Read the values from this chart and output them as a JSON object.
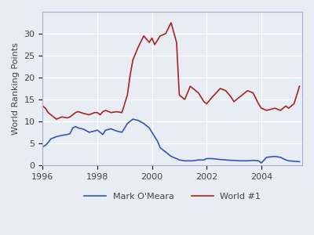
{
  "title": "",
  "ylabel": "World Ranking Points",
  "xlabel": "",
  "background_color": "#e8edf4",
  "grid_color": "#ffffff",
  "ylim": [
    0,
    35
  ],
  "xlim": [
    1996.0,
    2005.5
  ],
  "xticks": [
    1996,
    1998,
    2000,
    2002,
    2004
  ],
  "yticks": [
    0,
    5,
    10,
    15,
    20,
    25,
    30
  ],
  "line_omeara_color": "#3355bb",
  "line_world1_color": "#aa2222",
  "legend_labels": [
    "Mark O'Meara",
    "World #1"
  ],
  "omeara_x": [
    1996.0,
    1996.1,
    1996.2,
    1996.3,
    1996.5,
    1996.7,
    1996.9,
    1997.0,
    1997.1,
    1997.2,
    1997.3,
    1997.5,
    1997.7,
    1997.9,
    1998.0,
    1998.1,
    1998.2,
    1998.3,
    1998.5,
    1998.7,
    1998.9,
    1999.0,
    1999.1,
    1999.2,
    1999.3,
    1999.5,
    1999.7,
    1999.9,
    2000.0,
    2000.1,
    2000.2,
    2000.3,
    2000.5,
    2000.7,
    2000.9,
    2001.0,
    2001.2,
    2001.5,
    2001.7,
    2001.9,
    2002.0,
    2002.2,
    2002.5,
    2002.7,
    2002.9,
    2003.0,
    2003.2,
    2003.5,
    2003.7,
    2003.9,
    2004.0,
    2004.2,
    2004.5,
    2004.7,
    2004.9,
    2005.0,
    2005.2,
    2005.4
  ],
  "omeara_y": [
    4.2,
    4.5,
    5.2,
    6.0,
    6.5,
    6.8,
    7.0,
    7.2,
    8.5,
    8.8,
    8.5,
    8.2,
    7.5,
    7.8,
    8.0,
    7.5,
    7.0,
    8.0,
    8.3,
    7.8,
    7.5,
    8.5,
    9.5,
    10.0,
    10.5,
    10.2,
    9.5,
    8.5,
    7.5,
    6.5,
    5.5,
    4.0,
    3.0,
    2.0,
    1.5,
    1.2,
    1.0,
    1.0,
    1.2,
    1.2,
    1.5,
    1.5,
    1.3,
    1.2,
    1.1,
    1.1,
    1.0,
    1.0,
    1.1,
    1.0,
    0.5,
    1.8,
    2.0,
    1.8,
    1.2,
    1.0,
    0.9,
    0.8
  ],
  "world1_x": [
    1996.0,
    1996.1,
    1996.2,
    1996.3,
    1996.5,
    1996.7,
    1996.9,
    1997.0,
    1997.1,
    1997.2,
    1997.3,
    1997.5,
    1997.7,
    1997.9,
    1998.0,
    1998.1,
    1998.2,
    1998.3,
    1998.5,
    1998.7,
    1998.9,
    1999.0,
    1999.1,
    1999.2,
    1999.3,
    1999.5,
    1999.7,
    1999.9,
    2000.0,
    2000.1,
    2000.2,
    2000.3,
    2000.5,
    2000.7,
    2000.9,
    2001.0,
    2001.1,
    2001.2,
    2001.3,
    2001.4,
    2001.5,
    2001.6,
    2001.7,
    2001.9,
    2002.0,
    2002.2,
    2002.5,
    2002.7,
    2002.9,
    2003.0,
    2003.2,
    2003.5,
    2003.7,
    2003.9,
    2004.0,
    2004.2,
    2004.5,
    2004.7,
    2004.9,
    2005.0,
    2005.2,
    2005.4
  ],
  "world1_y": [
    13.5,
    13.0,
    12.0,
    11.5,
    10.5,
    11.0,
    10.8,
    11.0,
    11.5,
    12.0,
    12.2,
    11.8,
    11.5,
    12.0,
    12.0,
    11.5,
    12.2,
    12.5,
    12.0,
    12.2,
    12.0,
    14.0,
    16.0,
    20.5,
    24.0,
    27.0,
    29.5,
    28.0,
    29.0,
    27.5,
    28.5,
    29.5,
    30.0,
    32.5,
    28.0,
    16.0,
    15.5,
    15.0,
    16.5,
    18.0,
    17.5,
    17.0,
    16.5,
    14.5,
    14.0,
    15.5,
    17.5,
    17.0,
    15.5,
    14.5,
    15.5,
    17.0,
    16.5,
    14.0,
    13.0,
    12.5,
    13.0,
    12.5,
    13.5,
    13.0,
    14.0,
    18.0
  ]
}
